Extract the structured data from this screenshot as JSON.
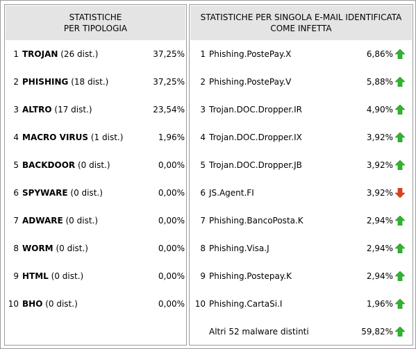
{
  "left": {
    "title": [
      "STATISTICHE",
      "PER TIPOLOGIA"
    ],
    "rows": [
      {
        "rank": 1,
        "name": "TROJAN",
        "count": "(26 dist.)",
        "percent": "37,25%"
      },
      {
        "rank": 2,
        "name": "PHISHING",
        "count": "(18 dist.)",
        "percent": "37,25%"
      },
      {
        "rank": 3,
        "name": "ALTRO",
        "count": "(17 dist.)",
        "percent": "23,54%"
      },
      {
        "rank": 4,
        "name": "MACRO VIRUS",
        "count": "(1 dist.)",
        "percent": "1,96%"
      },
      {
        "rank": 5,
        "name": "BACKDOOR",
        "count": "(0 dist.)",
        "percent": "0,00%"
      },
      {
        "rank": 6,
        "name": "SPYWARE",
        "count": "(0 dist.)",
        "percent": "0,00%"
      },
      {
        "rank": 7,
        "name": "ADWARE",
        "count": "(0 dist.)",
        "percent": "0,00%"
      },
      {
        "rank": 8,
        "name": "WORM",
        "count": "(0 dist.)",
        "percent": "0,00%"
      },
      {
        "rank": 9,
        "name": "HTML",
        "count": "(0 dist.)",
        "percent": "0,00%"
      },
      {
        "rank": 10,
        "name": "BHO",
        "count": "(0 dist.)",
        "percent": "0,00%"
      }
    ]
  },
  "right": {
    "title": [
      "STATISTICHE PER SINGOLA E-MAIL IDENTIFICATA",
      "COME INFETTA"
    ],
    "rows": [
      {
        "rank": 1,
        "name": "Phishing.PostePay.X",
        "percent": "6,86%",
        "trend": "up"
      },
      {
        "rank": 2,
        "name": "Phishing.PostePay.V",
        "percent": "5,88%",
        "trend": "up"
      },
      {
        "rank": 3,
        "name": "Trojan.DOC.Dropper.IR",
        "percent": "4,90%",
        "trend": "up"
      },
      {
        "rank": 4,
        "name": "Trojan.DOC.Dropper.IX",
        "percent": "3,92%",
        "trend": "up"
      },
      {
        "rank": 5,
        "name": "Trojan.DOC.Dropper.JB",
        "percent": "3,92%",
        "trend": "up"
      },
      {
        "rank": 6,
        "name": "JS.Agent.FI",
        "percent": "3,92%",
        "trend": "down"
      },
      {
        "rank": 7,
        "name": "Phishing.BancoPosta.K",
        "percent": "2,94%",
        "trend": "up"
      },
      {
        "rank": 8,
        "name": "Phishing.Visa.J",
        "percent": "2,94%",
        "trend": "up"
      },
      {
        "rank": 9,
        "name": "Phishing.Postepay.K",
        "percent": "2,94%",
        "trend": "up"
      },
      {
        "rank": 10,
        "name": "Phishing.CartaSi.I",
        "percent": "1,96%",
        "trend": "up"
      }
    ],
    "footer": {
      "name": "Altri 52 malware distinti",
      "percent": "59,82%",
      "trend": "up"
    }
  }
}
